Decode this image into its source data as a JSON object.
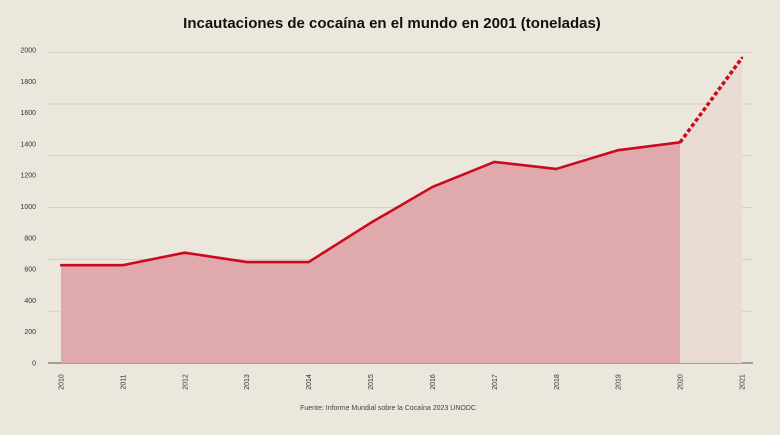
{
  "chart_data": {
    "type": "area",
    "title": "Incautaciones de cocaína en el mundo en 2001 (toneladas)",
    "source": "Fuente: Informe Mundial sobre la Cocaína 2023 UNODC",
    "xlabel": "",
    "ylabel": "",
    "ylim": [
      0,
      2000
    ],
    "yticks": [
      "0",
      "200",
      "400",
      "600",
      "800",
      "1000",
      "1200",
      "1400",
      "1600",
      "1800",
      "2000"
    ],
    "grid": true,
    "categories": [
      "2010",
      "2011",
      "2012",
      "2013",
      "2014",
      "2015",
      "2016",
      "2017",
      "2018",
      "2019",
      "2020",
      "2021"
    ],
    "values": [
      625,
      625,
      705,
      645,
      645,
      895,
      1125,
      1285,
      1240,
      1360,
      1410,
      1950
    ],
    "projected_from": "2020",
    "colors": {
      "line": "#cc0a1e",
      "fill": "#e0aaad",
      "projected_fill": "#e8dbd3",
      "background": "#ece7dc",
      "grid": "#d3cdc4",
      "axis": "#8a8580"
    }
  }
}
